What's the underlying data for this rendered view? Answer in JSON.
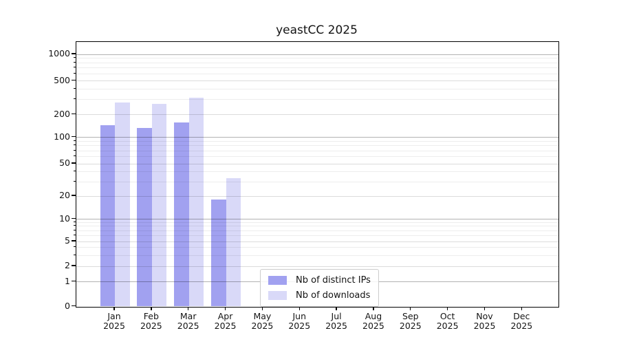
{
  "title": "yeastCC 2025",
  "legend": {
    "items": [
      {
        "label": "Nb of distinct IPs",
        "color": "#a1a1f0"
      },
      {
        "label": "Nb of downloads",
        "color": "#d9d9f8"
      }
    ]
  },
  "y_axis": {
    "tick_labels": [
      "0",
      "1",
      "2",
      "5",
      "10",
      "20",
      "50",
      "100",
      "200",
      "500",
      "1000"
    ]
  },
  "x_axis": {
    "months": [
      "Jan",
      "Feb",
      "Mar",
      "Apr",
      "May",
      "Jun",
      "Jul",
      "Aug",
      "Sep",
      "Oct",
      "Nov",
      "Dec"
    ],
    "year": "2025"
  },
  "chart_data": {
    "type": "bar",
    "title": "yeastCC 2025",
    "categories": [
      "Jan 2025",
      "Feb 2025",
      "Mar 2025",
      "Apr 2025",
      "May 2025",
      "Jun 2025",
      "Jul 2025",
      "Aug 2025",
      "Sep 2025",
      "Oct 2025",
      "Nov 2025",
      "Dec 2025"
    ],
    "series": [
      {
        "name": "Nb of distinct IPs",
        "color": "#a1a1f0",
        "values": [
          145,
          132,
          158,
          18,
          0,
          0,
          0,
          0,
          0,
          0,
          0,
          0
        ]
      },
      {
        "name": "Nb of downloads",
        "color": "#d9d9f8",
        "values": [
          280,
          265,
          315,
          33,
          0,
          0,
          0,
          0,
          0,
          0,
          0,
          0
        ]
      }
    ],
    "yscale": "symlog",
    "y_ticks": [
      0,
      1,
      2,
      5,
      10,
      20,
      50,
      100,
      200,
      500,
      1000
    ],
    "ylim": [
      0,
      1300
    ],
    "xlabel": "",
    "ylabel": "",
    "grid": "both",
    "legend_position": "lower center"
  },
  "colors": {
    "bar_ips": "#a1a1f0",
    "bar_downloads": "#d9d9f8",
    "axis": "#000000",
    "text": "#141414",
    "legend_border": "#cccccc",
    "background": "#ffffff"
  }
}
